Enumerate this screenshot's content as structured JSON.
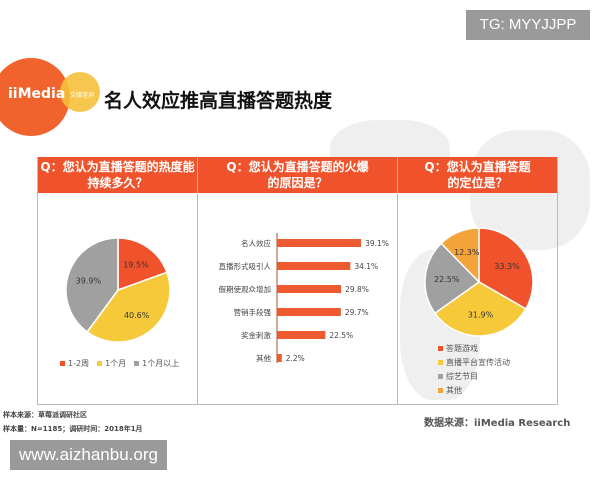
{
  "watermark_top": "TG: MYYJJPP",
  "watermark_bottom": "www.aizhanbu.org",
  "logo": {
    "text": "iiMedia",
    "sub": "艾媒咨询"
  },
  "title": "名人效应推高直播答题热度",
  "colors": {
    "orange": "#f0532c",
    "yellow": "#f6c93b",
    "gray": "#a0a0a0",
    "light_orange": "#f4a23a"
  },
  "chart_data": [
    {
      "type": "pie",
      "title": "Q：您认为直播答题的热度能持续多久？",
      "title_lines": [
        "Q：您认为直播答题的热度能",
        "持续多久？"
      ],
      "categories": [
        "1-2周",
        "1个月",
        "1个月以上"
      ],
      "values": [
        19.5,
        40.6,
        39.9
      ],
      "labels": [
        "19.5%",
        "40.6%",
        "39.9%"
      ],
      "colors": [
        "#f0532c",
        "#f6c93b",
        "#a0a0a0"
      ],
      "legend": "bottom"
    },
    {
      "type": "bar",
      "orientation": "horizontal",
      "title": "Q：您认为直播答题的火爆的原因是？",
      "title_lines": [
        "Q：您认为直播答题的火爆",
        "的原因是？"
      ],
      "categories": [
        "名人效应",
        "直播形式吸引人",
        "假期使观众增加",
        "营销手段强",
        "奖金刺激",
        "其他"
      ],
      "values": [
        39.1,
        34.1,
        29.8,
        29.7,
        22.5,
        2.2
      ],
      "labels": [
        "39.1%",
        "34.1%",
        "29.8%",
        "29.7%",
        "22.5%",
        "2.2%"
      ],
      "unit": "%"
    },
    {
      "type": "pie",
      "title": "Q：您认为直播答题的定位是？",
      "title_lines": [
        "Q：您认为直播答题",
        "的定位是？"
      ],
      "categories": [
        "答题游戏",
        "直播平台宣传活动",
        "综艺节目",
        "其他"
      ],
      "values": [
        33.3,
        31.9,
        22.5,
        12.3
      ],
      "labels": [
        "33.3%",
        "31.9%",
        "22.5%",
        "12.3%"
      ],
      "colors": [
        "#f0532c",
        "#f6c93b",
        "#a0a0a0",
        "#f4a23a"
      ],
      "legend": "bottom"
    }
  ],
  "footer": {
    "sample_source": "样本来源：草莓派调研社区",
    "sample_size": "样本量：N=1185；调研时间：2018年1月",
    "data_source": "数据来源：iiMedia Research"
  }
}
